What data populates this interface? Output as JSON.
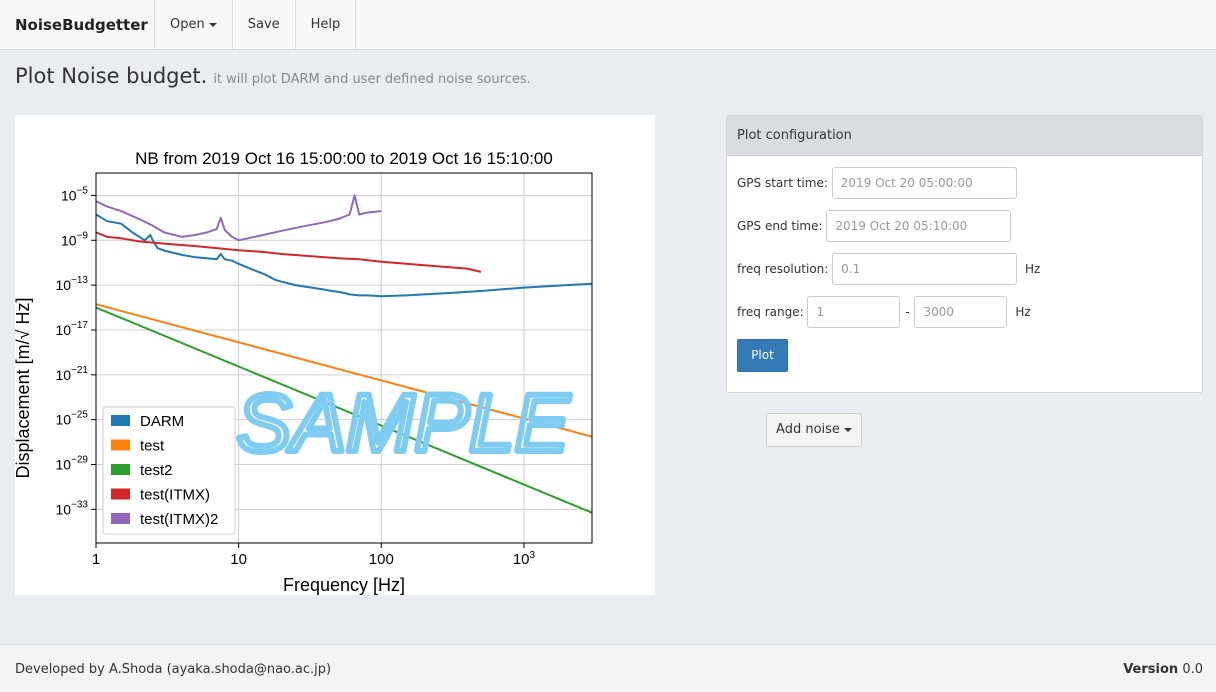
{
  "navbar": {
    "brand": "NoiseBudgetter",
    "items": [
      {
        "label": "Open"
      },
      {
        "label": "Save"
      },
      {
        "label": "Help"
      }
    ]
  },
  "header": {
    "title": "Plot Noise budget.",
    "subtitle": "it will plot DARM and user defined noise sources."
  },
  "config": {
    "heading": "Plot configuration",
    "gps_start_label": "GPS start time:",
    "gps_start_placeholder": "2019 Oct 20 05:00:00",
    "gps_end_label": "GPS end time:",
    "gps_end_placeholder": "2019 Oct 20 05:10:00",
    "freq_res_label": "freq resolution:",
    "freq_res_placeholder": "0.1",
    "freq_res_unit": "Hz",
    "freq_range_label": "freq range:",
    "freq_min_placeholder": "1",
    "freq_range_sep": "-",
    "freq_max_placeholder": "3000",
    "freq_range_unit": "Hz",
    "plot_button": "Plot"
  },
  "add_noise": {
    "label": "Add noise"
  },
  "footer": {
    "developer": "Developed by A.Shoda (ayaka.shoda@nao.ac.jp)",
    "version_label": "Version",
    "version_value": "0.0"
  },
  "watermark": "SAMPLE",
  "chart_data": {
    "type": "line",
    "title": "NB from 2019 Oct 16 15:00:00 to 2019 Oct 16 15:10:00",
    "xlabel": "Frequency [Hz]",
    "ylabel": "Displacement [m/√ Hz]",
    "xscale": "log",
    "yscale": "log",
    "xlim": [
      1,
      3000
    ],
    "ylim": [
      1e-36,
      0.001
    ],
    "xticks": [
      {
        "v": 1,
        "label": "1"
      },
      {
        "v": 10,
        "label": "10"
      },
      {
        "v": 100,
        "label": "100"
      },
      {
        "v": 1000,
        "label": "10",
        "sup": "3"
      }
    ],
    "yticks": [
      {
        "v": 1e-05,
        "sup": "−5"
      },
      {
        "v": 1e-09,
        "sup": "−9"
      },
      {
        "v": 1e-13,
        "sup": "−13"
      },
      {
        "v": 1e-17,
        "sup": "−17"
      },
      {
        "v": 1e-21,
        "sup": "−21"
      },
      {
        "v": 1e-25,
        "sup": "−25"
      },
      {
        "v": 1e-29,
        "sup": "−29"
      },
      {
        "v": 1e-33,
        "sup": "−33"
      }
    ],
    "grid": true,
    "legend_position": "lower-left",
    "series": [
      {
        "name": "DARM",
        "color": "#1f77b4",
        "x": [
          1,
          1.2,
          1.5,
          1.8,
          2.2,
          2.4,
          2.5,
          2.7,
          3,
          4,
          5,
          6,
          7,
          7.5,
          8,
          9,
          10,
          12,
          15,
          18,
          20,
          22,
          25,
          30,
          40,
          45,
          50,
          55,
          60,
          70,
          80,
          100,
          150,
          200,
          300,
          500,
          1000,
          2000,
          3000
        ],
        "y": [
          2e-07,
          5e-08,
          3e-08,
          5e-09,
          1e-09,
          3e-09,
          1e-09,
          2e-10,
          1.2e-10,
          5e-11,
          3e-11,
          2.5e-11,
          2e-11,
          6e-11,
          2e-11,
          1.5e-11,
          8e-12,
          3e-12,
          1e-12,
          3e-13,
          2e-13,
          1.5e-13,
          1e-13,
          7e-14,
          4e-14,
          3e-14,
          2.5e-14,
          2e-14,
          1.5e-14,
          1.2e-14,
          1.2e-14,
          1e-14,
          1.2e-14,
          1.5e-14,
          2e-14,
          3e-14,
          6e-14,
          1e-13,
          1.3e-13
        ]
      },
      {
        "name": "test",
        "color": "#ff7f0e",
        "x": [
          1,
          3000
        ],
        "y": [
          2e-15,
          3e-27
        ]
      },
      {
        "name": "test2",
        "color": "#2ca02c",
        "x": [
          1,
          3000
        ],
        "y": [
          1e-15,
          5e-34
        ]
      },
      {
        "name": "test(ITMX)",
        "color": "#d62728",
        "x": [
          1,
          1.2,
          1.5,
          2,
          3,
          5,
          7,
          10,
          15,
          20,
          30,
          50,
          70,
          100,
          150,
          200,
          300,
          400,
          500
        ],
        "y": [
          5e-09,
          2e-09,
          1.5e-09,
          8e-10,
          5e-10,
          3e-10,
          2e-10,
          1.3e-10,
          9e-11,
          6e-11,
          4e-11,
          2.5e-11,
          2e-11,
          1.2e-11,
          8e-12,
          6e-12,
          4e-12,
          3e-12,
          1.5e-12
        ]
      },
      {
        "name": "test(ITMX)2",
        "color": "#9467bd",
        "x": [
          1,
          1.2,
          1.5,
          2,
          2.5,
          3,
          4,
          5,
          6,
          7,
          7.5,
          8,
          9,
          10,
          15,
          20,
          30,
          40,
          50,
          60,
          65,
          70,
          80,
          100
        ],
        "y": [
          3e-06,
          1e-06,
          4e-07,
          8e-08,
          2e-08,
          5e-09,
          2e-09,
          3e-09,
          5e-09,
          1e-08,
          1e-07,
          8e-09,
          2e-09,
          1e-09,
          3e-09,
          7e-09,
          2e-08,
          4e-08,
          8e-08,
          2e-07,
          1e-05,
          2e-07,
          3e-07,
          4e-07
        ]
      }
    ]
  }
}
